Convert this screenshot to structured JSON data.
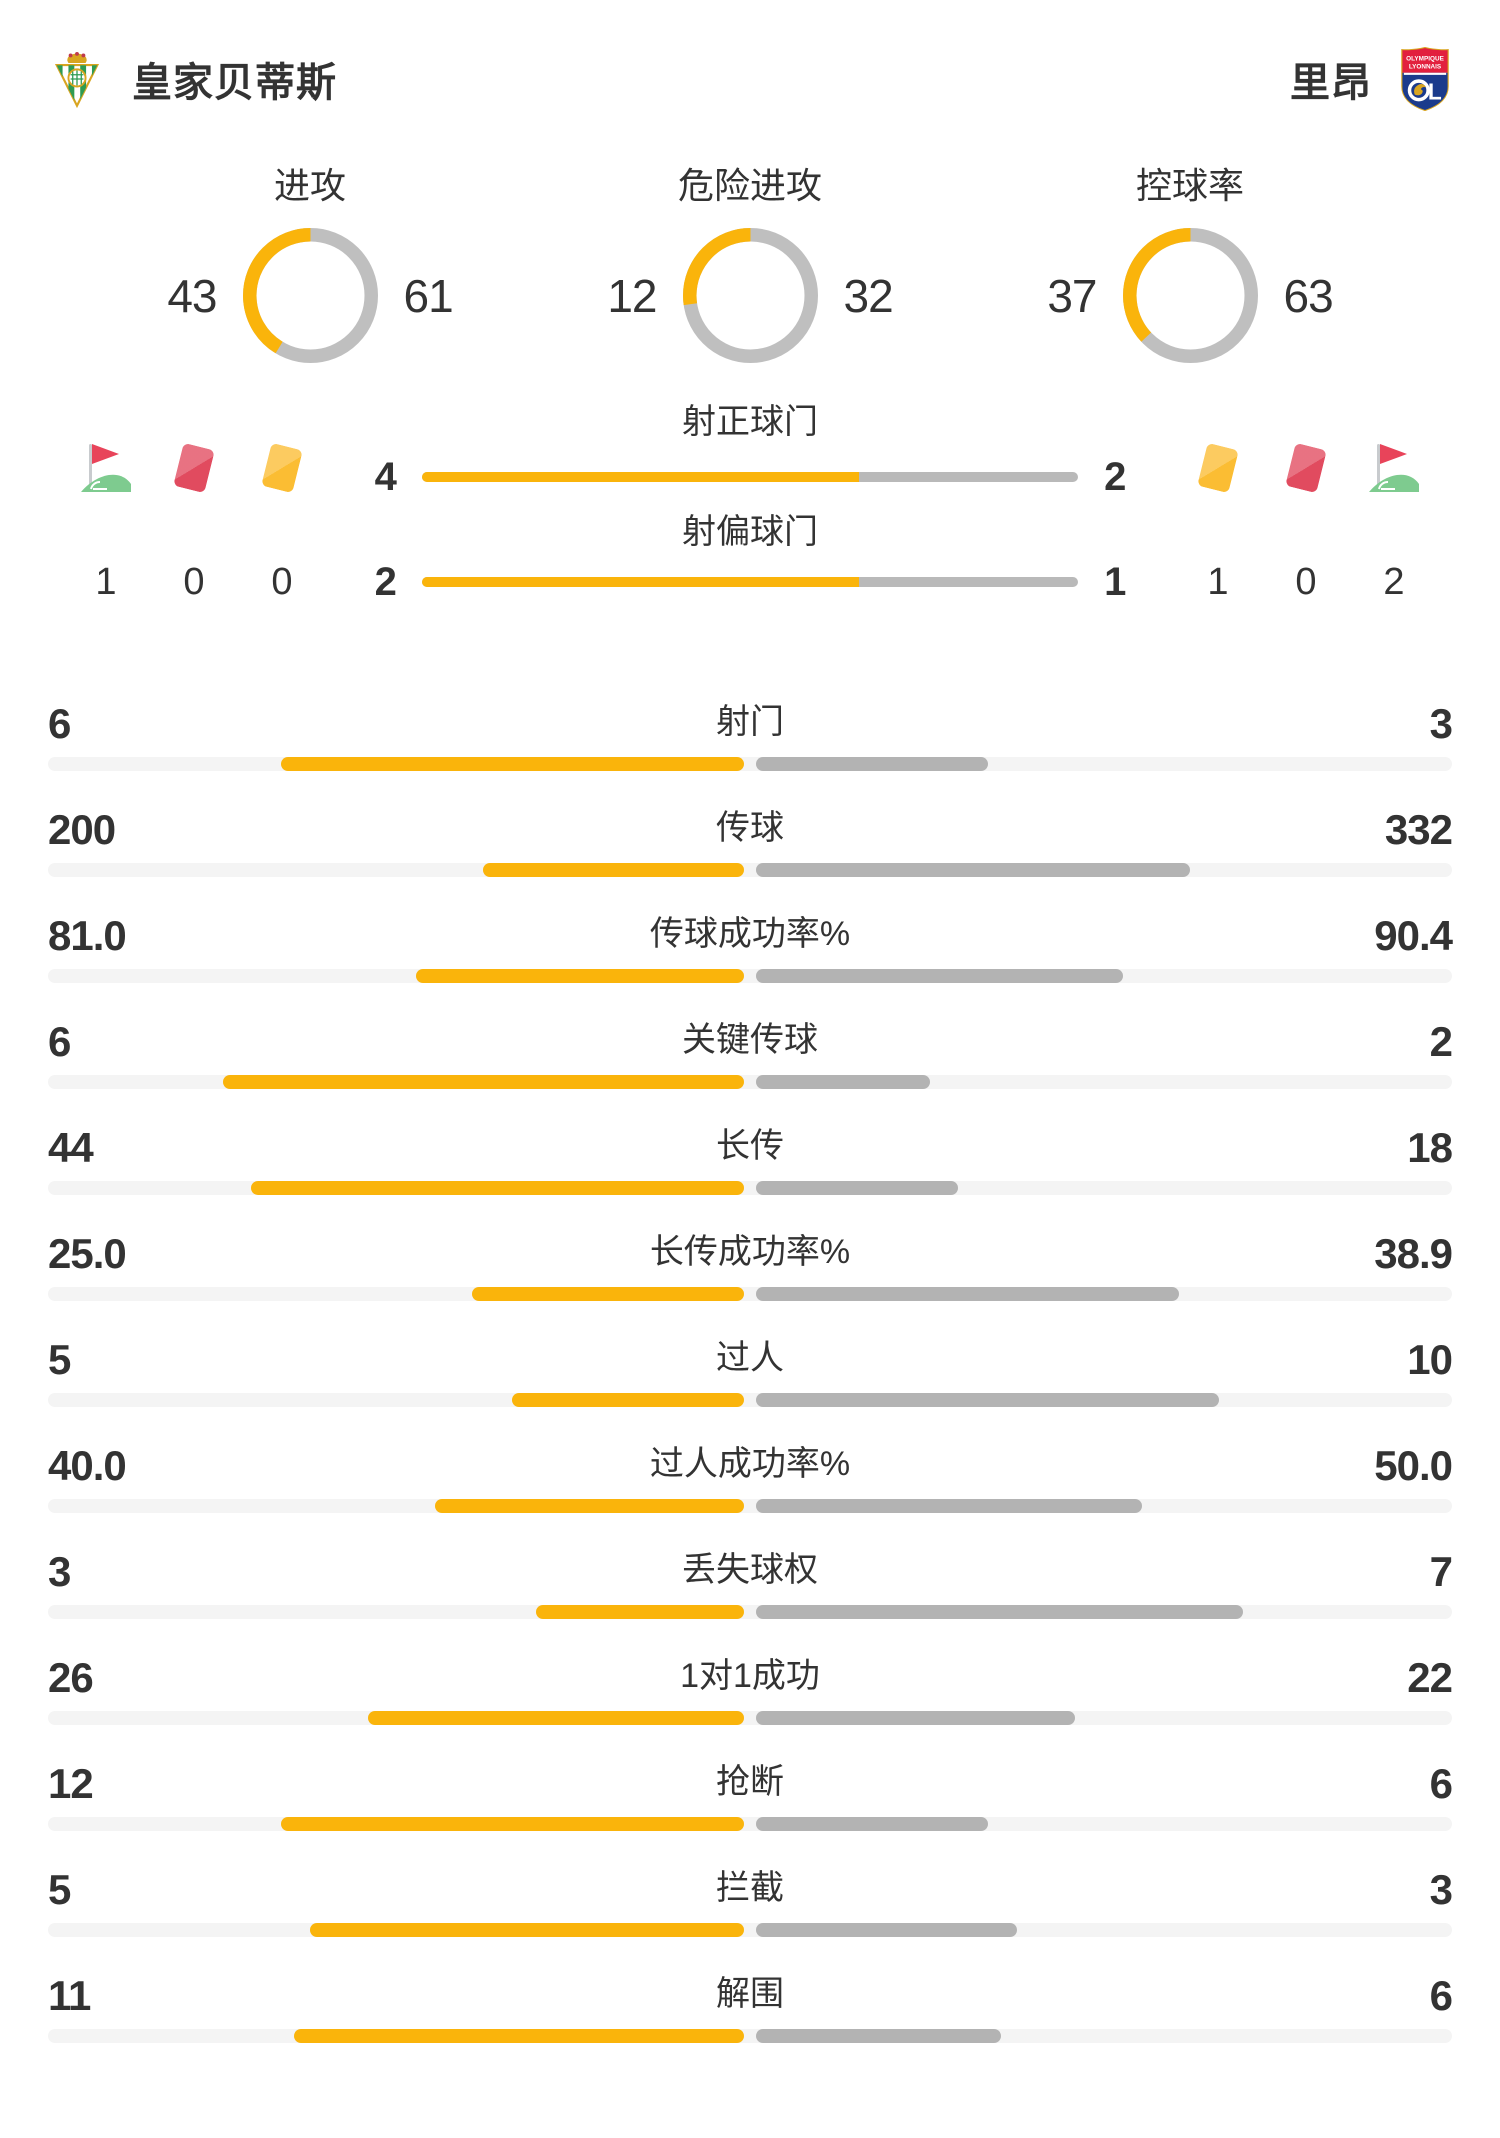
{
  "header": {
    "home": {
      "name": "皇家贝蒂斯"
    },
    "away": {
      "name": "里昂",
      "logo_text_line1": "OLYMPIQUE",
      "logo_text_line2": "LYONNAIS",
      "logo_letter": "L"
    }
  },
  "donuts": [
    {
      "title": "进攻",
      "home": "43",
      "away": "61"
    },
    {
      "title": "危险进攻",
      "home": "12",
      "away": "32"
    },
    {
      "title": "控球率",
      "home": "37",
      "away": "63"
    }
  ],
  "shots": {
    "on_target": {
      "label": "射正球门",
      "home": "4",
      "away": "2"
    },
    "off_target": {
      "label": "射偏球门",
      "home": "2",
      "away": "1"
    }
  },
  "discipline": {
    "home": {
      "corner": "1",
      "red_card": "0",
      "yellow_card": "0"
    },
    "away": {
      "yellow_card": "1",
      "red_card": "0",
      "corner": "2"
    }
  },
  "stats": [
    {
      "label": "射门",
      "home": "6",
      "away": "3"
    },
    {
      "label": "传球",
      "home": "200",
      "away": "332"
    },
    {
      "label": "传球成功率%",
      "home": "81.0",
      "away": "90.4"
    },
    {
      "label": "关键传球",
      "home": "6",
      "away": "2"
    },
    {
      "label": "长传",
      "home": "44",
      "away": "18"
    },
    {
      "label": "长传成功率%",
      "home": "25.0",
      "away": "38.9"
    },
    {
      "label": "过人",
      "home": "5",
      "away": "10"
    },
    {
      "label": "过人成功率%",
      "home": "40.0",
      "away": "50.0"
    },
    {
      "label": "丢失球权",
      "home": "3",
      "away": "7"
    },
    {
      "label": "1对1成功",
      "home": "26",
      "away": "22"
    },
    {
      "label": "抢断",
      "home": "12",
      "away": "6"
    },
    {
      "label": "拦截",
      "home": "5",
      "away": "3"
    },
    {
      "label": "解围",
      "home": "11",
      "away": "6"
    }
  ],
  "colors": {
    "accent_yellow": "#FAB40B",
    "bar_gray": "#B3B3B3",
    "donut_gray": "#BFBFBF",
    "track_gray": "#F4F4F4",
    "text": "#333333",
    "red_card": "#E14B5F",
    "yellow_card": "#FBBD33",
    "flag_red": "#E8445A",
    "flag_green": "#7ECB8F"
  }
}
